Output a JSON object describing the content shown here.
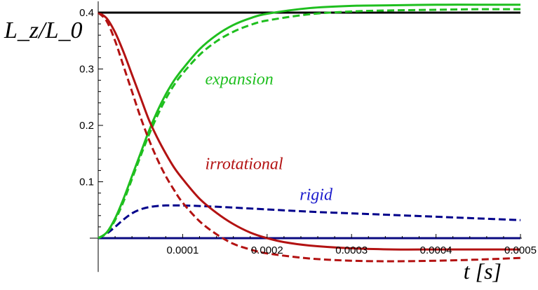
{
  "chart_data": {
    "type": "line",
    "title": "",
    "xlabel": "t [s]",
    "ylabel": "L_z/L_0",
    "xlim": [
      0,
      0.0005
    ],
    "ylim": [
      -0.06,
      0.42
    ],
    "grid": false,
    "legend": "none",
    "x_ticks": [
      {
        "value": 0.0001,
        "label": "0.0001"
      },
      {
        "value": 0.0002,
        "label": "0.0002"
      },
      {
        "value": 0.0003,
        "label": "0.0003"
      },
      {
        "value": 0.0004,
        "label": "0.0004"
      },
      {
        "value": 0.0005,
        "label": "0.0005"
      }
    ],
    "y_ticks": [
      {
        "value": 0.1,
        "label": "0.1"
      },
      {
        "value": 0.2,
        "label": "0.2"
      },
      {
        "value": 0.3,
        "label": "0.3"
      },
      {
        "value": 0.4,
        "label": "0.4"
      }
    ],
    "series": [
      {
        "name": "",
        "color": "#000000",
        "dash": "solid",
        "x": [
          0,
          0.0005
        ],
        "y": [
          0.4,
          0.4
        ]
      },
      {
        "name": "",
        "color": "#0a0a80",
        "dash": "solid",
        "x": [
          0,
          0.0005
        ],
        "y": [
          0.0,
          0.0
        ]
      },
      {
        "name": "",
        "color": "#00008b",
        "dash": "dashed",
        "x": [
          0,
          1e-05,
          2e-05,
          3e-05,
          4e-05,
          5e-05,
          6e-05,
          7e-05,
          8e-05,
          9e-05,
          0.0001,
          0.00012,
          0.00015,
          0.0002,
          0.00025,
          0.0003,
          0.00035,
          0.0004,
          0.00045,
          0.0005
        ],
        "y": [
          0,
          0.008,
          0.02,
          0.033,
          0.044,
          0.051,
          0.055,
          0.057,
          0.058,
          0.058,
          0.058,
          0.057,
          0.055,
          0.051,
          0.047,
          0.044,
          0.041,
          0.038,
          0.035,
          0.032
        ]
      },
      {
        "name": "",
        "color": "#1fbf1f",
        "dash": "solid",
        "x": [
          0,
          1e-05,
          2e-05,
          3e-05,
          4e-05,
          5e-05,
          6e-05,
          7e-05,
          8e-05,
          9e-05,
          0.0001,
          0.00012,
          0.00014,
          0.00016,
          0.00018,
          0.0002,
          0.00025,
          0.0003,
          0.00035,
          0.0004,
          0.00045,
          0.0005
        ],
        "y": [
          0,
          0.01,
          0.035,
          0.07,
          0.11,
          0.15,
          0.19,
          0.225,
          0.255,
          0.28,
          0.3,
          0.335,
          0.36,
          0.378,
          0.39,
          0.398,
          0.408,
          0.412,
          0.413,
          0.414,
          0.414,
          0.414
        ]
      },
      {
        "name": "",
        "color": "#1fbf1f",
        "dash": "dashed",
        "x": [
          0,
          1e-05,
          2e-05,
          3e-05,
          4e-05,
          5e-05,
          6e-05,
          7e-05,
          8e-05,
          9e-05,
          0.0001,
          0.00012,
          0.00014,
          0.00016,
          0.00018,
          0.0002,
          0.00025,
          0.0003,
          0.00035,
          0.0004,
          0.00045,
          0.0005
        ],
        "y": [
          0,
          0.009,
          0.032,
          0.065,
          0.105,
          0.145,
          0.183,
          0.217,
          0.247,
          0.272,
          0.292,
          0.325,
          0.349,
          0.366,
          0.378,
          0.386,
          0.397,
          0.402,
          0.404,
          0.405,
          0.406,
          0.406
        ]
      },
      {
        "name": "",
        "color": "#b31212",
        "dash": "solid",
        "x": [
          0,
          1e-05,
          2e-05,
          3e-05,
          4e-05,
          5e-05,
          6e-05,
          7e-05,
          8e-05,
          9e-05,
          0.0001,
          0.00012,
          0.00014,
          0.00016,
          0.00018,
          0.0002,
          0.00022,
          0.00025,
          0.0003,
          0.00035,
          0.0004,
          0.00045,
          0.0005
        ],
        "y": [
          0.4,
          0.39,
          0.365,
          0.33,
          0.29,
          0.25,
          0.21,
          0.178,
          0.15,
          0.125,
          0.105,
          0.07,
          0.045,
          0.025,
          0.01,
          0.0,
          -0.007,
          -0.013,
          -0.018,
          -0.02,
          -0.02,
          -0.02,
          -0.02
        ]
      },
      {
        "name": "",
        "color": "#b31212",
        "dash": "dashed",
        "x": [
          0,
          1e-05,
          2e-05,
          3e-05,
          4e-05,
          5e-05,
          6e-05,
          7e-05,
          8e-05,
          9e-05,
          0.0001,
          0.00012,
          0.00014,
          0.00016,
          0.00018,
          0.0002,
          0.00025,
          0.0003,
          0.00035,
          0.0004,
          0.00045,
          0.0005
        ],
        "y": [
          0.4,
          0.385,
          0.35,
          0.305,
          0.26,
          0.215,
          0.175,
          0.14,
          0.11,
          0.085,
          0.063,
          0.03,
          0.007,
          -0.01,
          -0.02,
          -0.027,
          -0.036,
          -0.04,
          -0.041,
          -0.04,
          -0.038,
          -0.035
        ]
      }
    ],
    "annotations": [
      {
        "text": "expansion",
        "color": "#1fbf1f",
        "x": 0.00011,
        "y": 0.29
      },
      {
        "text": "irrotational",
        "color": "#b31212",
        "x": 0.00011,
        "y": 0.14
      },
      {
        "text": "rigid",
        "color": "#1a1acc",
        "x": 0.000222,
        "y": 0.085
      }
    ]
  }
}
